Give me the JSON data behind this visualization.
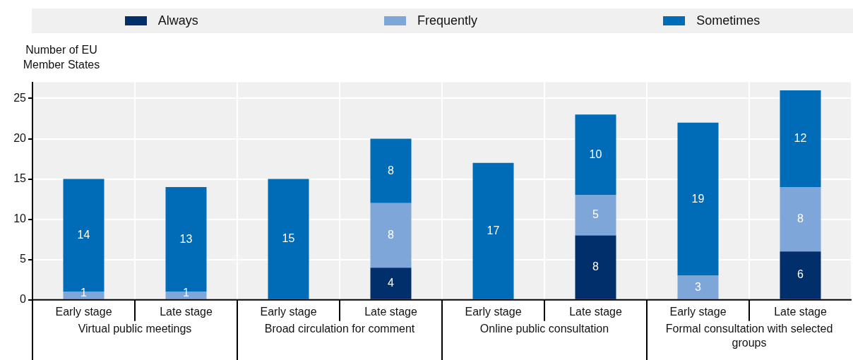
{
  "chart_data": {
    "type": "bar",
    "stacked": true,
    "ylabel": "Number of EU Member States",
    "categories": [
      "Early stage",
      "Late stage",
      "Early stage",
      "Late stage",
      "Early stage",
      "Late stage",
      "Early stage",
      "Late stage"
    ],
    "annotations": [
      "Virtual public meetings",
      "Broad circulation for comment",
      "Online public consultation",
      "Formal consultation with selected groups"
    ],
    "series": [
      {
        "name": "Always",
        "color": "#002f6c",
        "values": [
          0,
          0,
          0,
          4,
          0,
          8,
          0,
          6
        ],
        "value_labels": [
          null,
          null,
          null,
          "4",
          null,
          "8",
          null,
          "6"
        ]
      },
      {
        "name": "Frequently",
        "color": "#7fa6d9",
        "values": [
          1,
          1,
          0,
          8,
          0,
          5,
          3,
          8
        ],
        "value_labels": [
          "1",
          "1",
          null,
          "8",
          null,
          "5",
          "3",
          "8"
        ]
      },
      {
        "name": "Sometimes",
        "color": "#006bb6",
        "values": [
          14,
          13,
          15,
          8,
          17,
          10,
          19,
          12
        ],
        "value_labels": [
          "14",
          "13",
          "15",
          "8",
          "17",
          "10",
          "19",
          "12"
        ]
      }
    ],
    "ylim": [
      0,
      27
    ],
    "yticks": [
      0,
      5,
      10,
      15,
      20,
      25
    ],
    "grid": true,
    "legend": "top"
  }
}
